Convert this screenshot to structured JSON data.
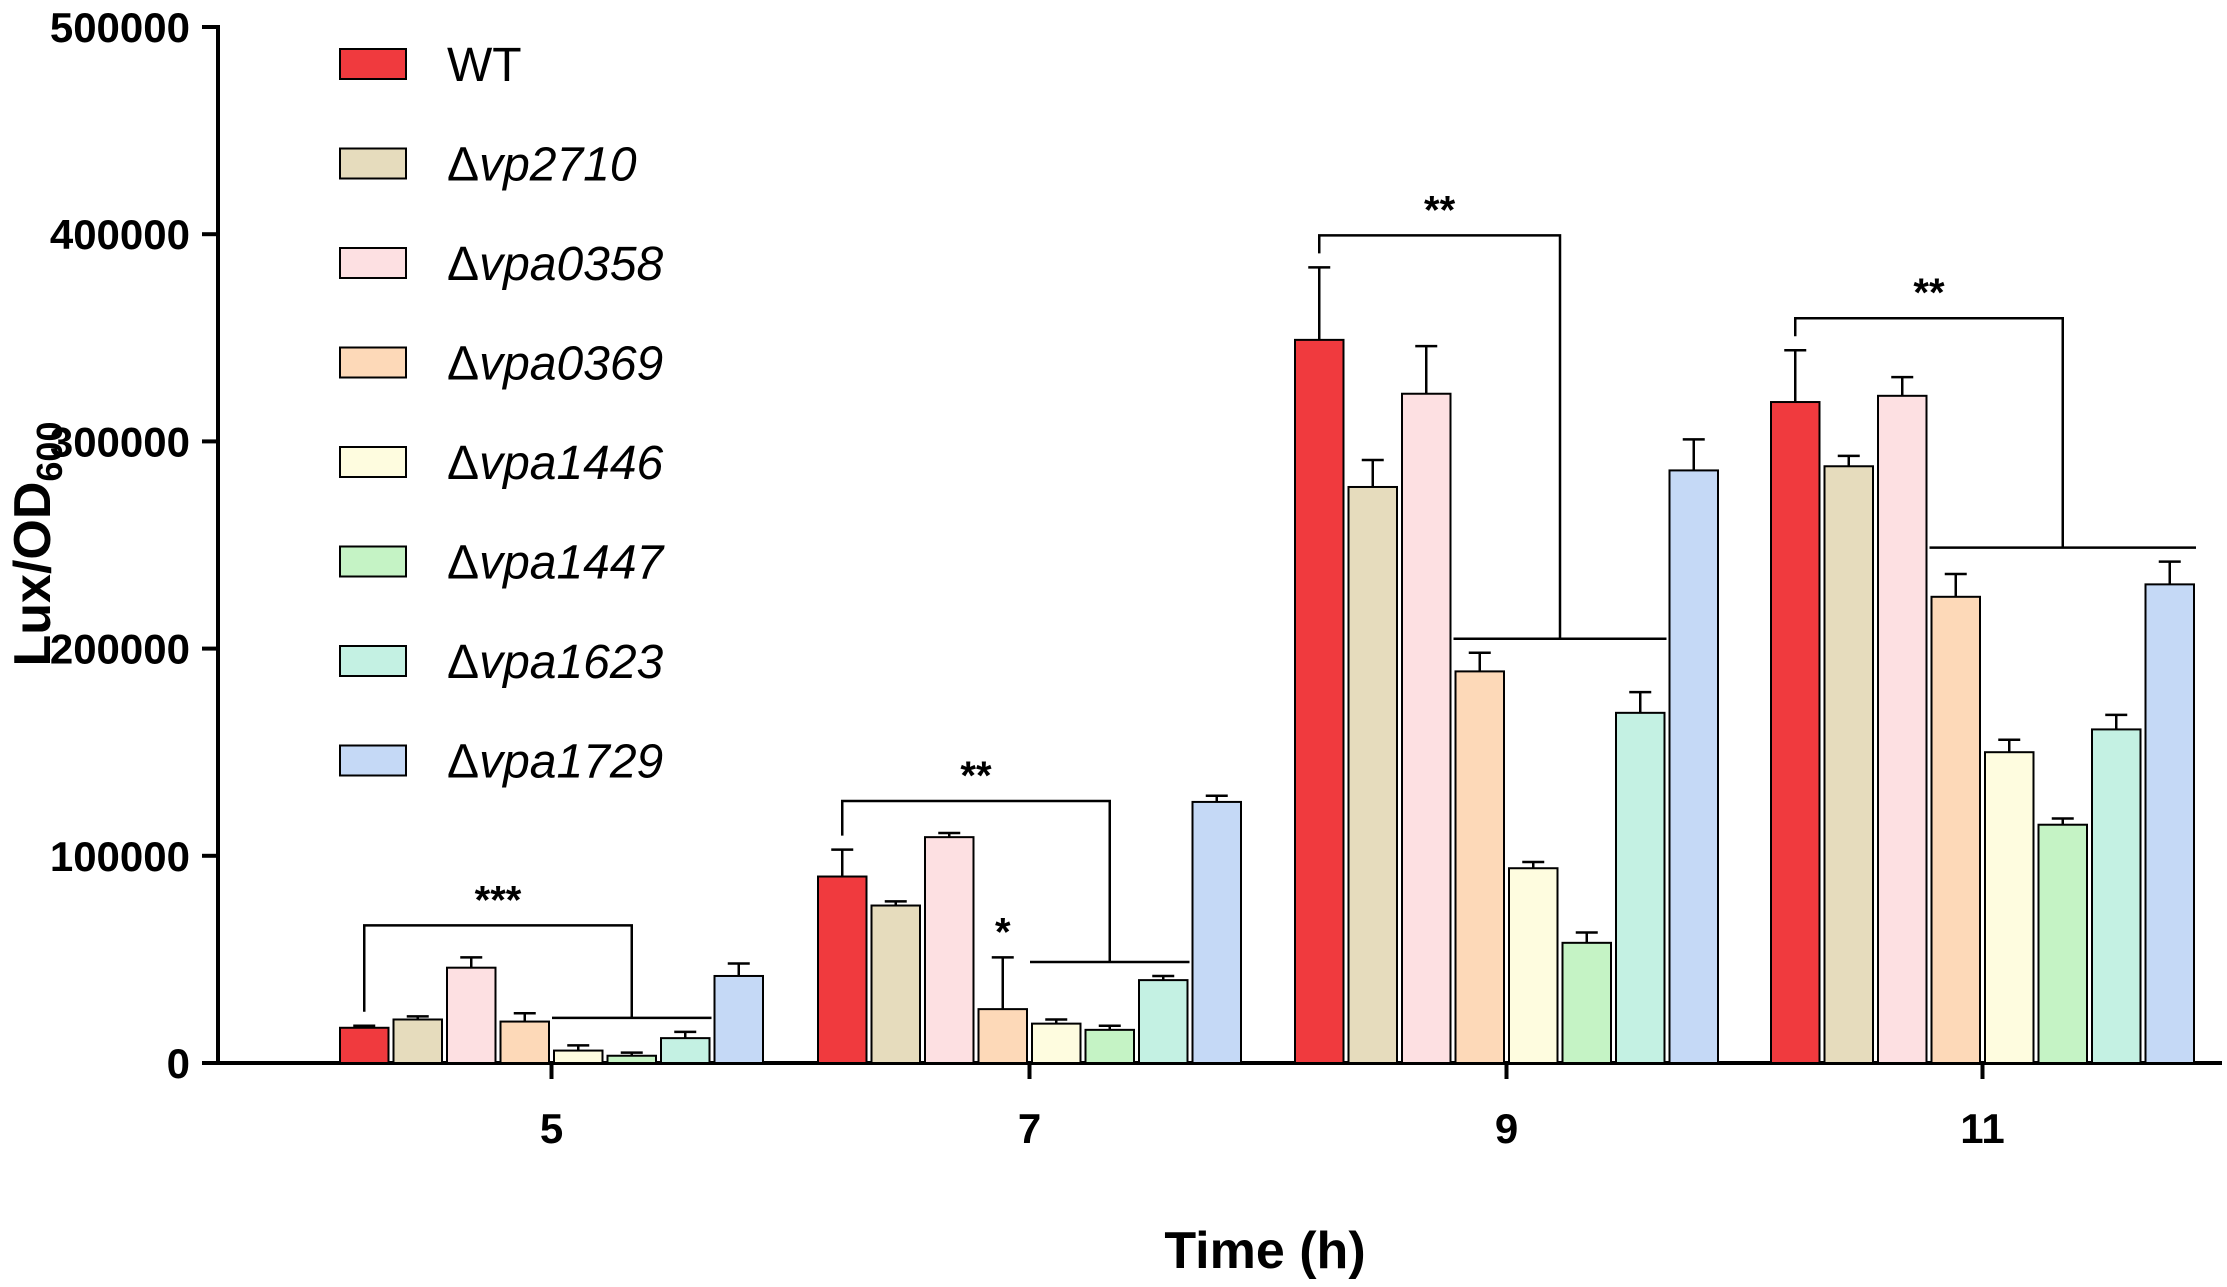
{
  "chart_data": {
    "type": "bar",
    "title": "",
    "xlabel": "Time (h)",
    "ylabel": {
      "main": "Lux/OD",
      "sub": "600"
    },
    "categories": [
      "5",
      "7",
      "9",
      "11"
    ],
    "ylim": [
      0,
      500000
    ],
    "yticks": [
      "0",
      "100000",
      "200000",
      "300000",
      "400000",
      "500000"
    ],
    "legend_position": "top-left",
    "series": [
      {
        "name": "WT",
        "prefix": "",
        "italic": "",
        "color": "#f03a3e",
        "values": [
          17000,
          90000,
          349000,
          319000
        ],
        "errors": [
          1000,
          13000,
          35000,
          25000
        ]
      },
      {
        "name": "Δvp2710",
        "prefix": "Δ",
        "italic": "vp2710",
        "color": "#e6dcbd",
        "values": [
          21000,
          76000,
          278000,
          288000
        ],
        "errors": [
          1500,
          2000,
          13000,
          5000
        ]
      },
      {
        "name": "Δvpa0358",
        "prefix": "Δ",
        "italic": "vpa0358",
        "color": "#fde0e2",
        "values": [
          46000,
          109000,
          323000,
          322000
        ],
        "errors": [
          5000,
          2000,
          23000,
          9000
        ]
      },
      {
        "name": "Δvpa0369",
        "prefix": "Δ",
        "italic": "vpa0369",
        "color": "#fdd9b8",
        "values": [
          20000,
          26000,
          189000,
          225000
        ],
        "errors": [
          4000,
          25000,
          9000,
          11000
        ]
      },
      {
        "name": "Δvpa1446",
        "prefix": "Δ",
        "italic": "vpa1446",
        "color": "#fefcdf",
        "values": [
          6000,
          19000,
          94000,
          150000
        ],
        "errors": [
          2500,
          2000,
          3000,
          6000
        ]
      },
      {
        "name": "Δvpa1447",
        "prefix": "Δ",
        "italic": "vpa1447",
        "color": "#c5f3c5",
        "values": [
          3500,
          16000,
          58000,
          115000
        ],
        "errors": [
          1500,
          2000,
          5000,
          3000
        ]
      },
      {
        "name": "Δvpa1623",
        "prefix": "Δ",
        "italic": "vpa1623",
        "color": "#c4f1e3",
        "values": [
          12000,
          40000,
          169000,
          161000
        ],
        "errors": [
          3000,
          2000,
          10000,
          7000
        ]
      },
      {
        "name": "Δvpa1729",
        "prefix": "Δ",
        "italic": "vpa1729",
        "color": "#c5d9f6",
        "values": [
          42000,
          126000,
          286000,
          231000
        ],
        "errors": [
          6000,
          3000,
          15000,
          11000
        ]
      }
    ],
    "annotations": [
      {
        "label": "***",
        "group": 0,
        "from_series": 0,
        "to_series_range": [
          4,
          6
        ]
      },
      {
        "label": "**",
        "group": 1,
        "from_series": 0,
        "to_series_range": [
          4,
          6
        ]
      },
      {
        "label": "*",
        "group": 1,
        "over_series": 3
      },
      {
        "label": "**",
        "group": 2,
        "from_series": 0,
        "to_series_range": [
          3,
          6
        ]
      },
      {
        "label": "**",
        "group": 3,
        "from_series": 0,
        "to_series_range": [
          3,
          7
        ]
      }
    ]
  }
}
